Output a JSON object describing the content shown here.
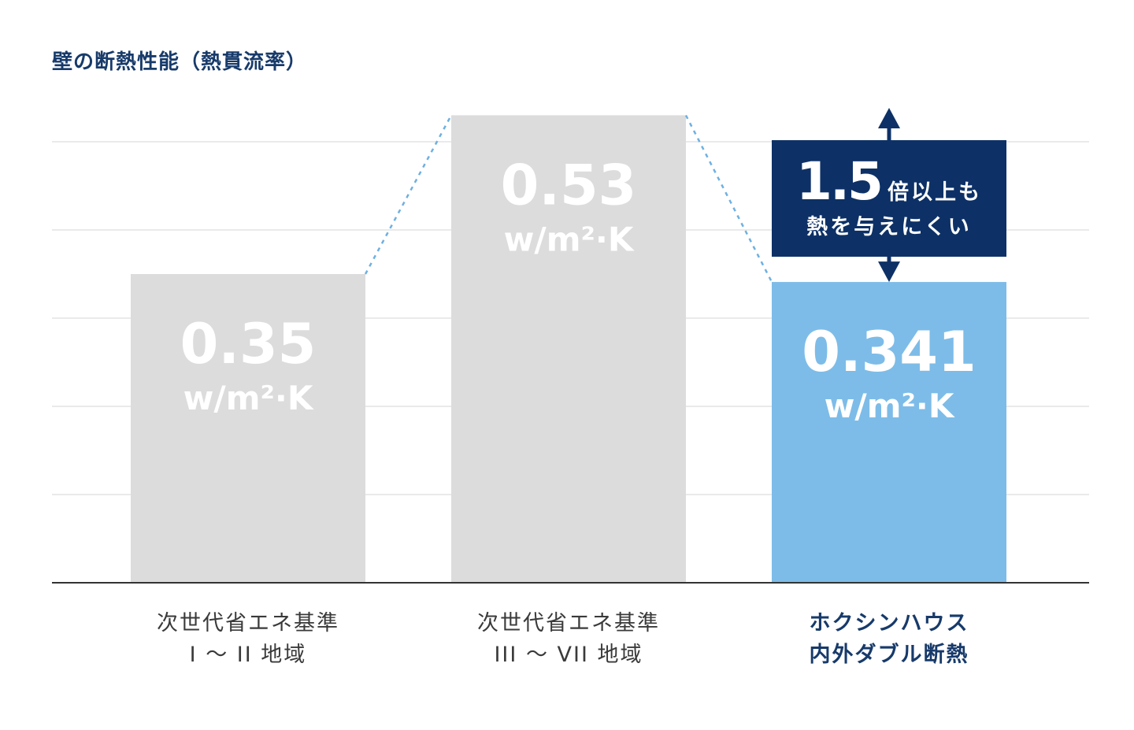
{
  "chart_data": {
    "type": "bar",
    "title": "壁の断熱性能（熱貫流率）",
    "categories": [
      [
        "次世代省エネ基準",
        "I ～ II 地域"
      ],
      [
        "次世代省エネ基準",
        "III ～ VII 地域"
      ],
      [
        "ホクシンハウス",
        "内外ダブル断熱"
      ]
    ],
    "values": [
      0.35,
      0.53,
      0.341
    ],
    "value_labels": [
      "0.35",
      "0.53",
      "0.341"
    ],
    "unit": "w/m²·K",
    "highlight_index": 2,
    "ylim": [
      0,
      0.6
    ],
    "grid": true,
    "annotation": {
      "ratio": "1.5",
      "suffix": "倍以上も",
      "line2": "熱を与えにくい"
    }
  },
  "colors": {
    "title": "#173a6a",
    "bar_default": "#dcdcdc",
    "bar_highlight": "#7dbce8",
    "bar_text": "#ffffff",
    "grid": "#e3e3e3",
    "axis": "#333333",
    "connector": "#6fb0e0",
    "callout_bg": "#0d3166",
    "label_default": "#3a3a3a",
    "label_highlight": "#173a6a"
  }
}
